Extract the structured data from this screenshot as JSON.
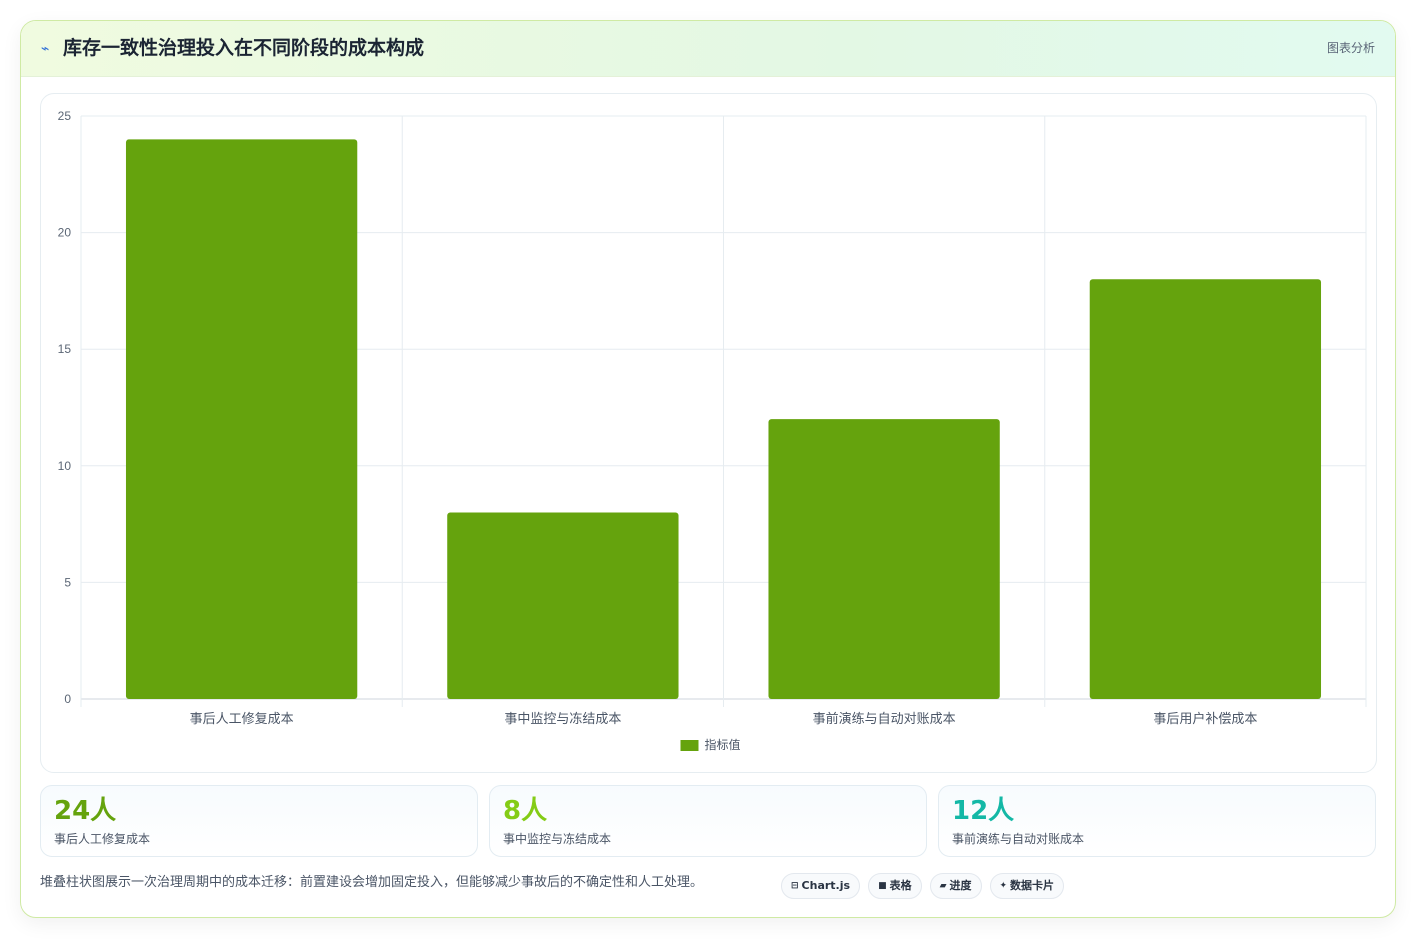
{
  "header": {
    "icon": "trend-line-icon",
    "icon_glyph": "⌁",
    "title": "库存一致性治理投入在不同阶段的成本构成",
    "tag": "图表分析"
  },
  "chart_data": {
    "type": "bar",
    "categories": [
      "事后人工修复成本",
      "事中监控与冻结成本",
      "事前演练与自动对账成本",
      "事后用户补偿成本"
    ],
    "series": [
      {
        "name": "指标值",
        "values": [
          24,
          8,
          12,
          18
        ],
        "color": "#65a30d"
      }
    ],
    "ylim": [
      0,
      25
    ],
    "yticks": [
      0,
      5,
      10,
      15,
      20,
      25
    ],
    "grid": true,
    "legend": "bottom",
    "title": "",
    "xlabel": "",
    "ylabel": ""
  },
  "stats": [
    {
      "value": "24人",
      "label": "事后人工修复成本",
      "color": "#65a30d"
    },
    {
      "value": "8人",
      "label": "事中监控与冻结成本",
      "color": "#84cc16"
    },
    {
      "value": "12人",
      "label": "事前演练与自动对账成本",
      "color": "#14b8a6"
    }
  ],
  "footer": {
    "text": "堆叠柱状图展示一次治理周期中的成本迁移：前置建设会增加固定投入，但能够减少事故后的不确定性和人工处理。",
    "pills": [
      {
        "icon": "chart-icon",
        "glyph": "⊟",
        "label": "Chart.js"
      },
      {
        "icon": "table-icon",
        "glyph": "■",
        "label": "表格"
      },
      {
        "icon": "progress-icon",
        "glyph": "▰",
        "label": "进度"
      },
      {
        "icon": "sparkle-icon",
        "glyph": "✦",
        "label": "数据卡片"
      }
    ]
  }
}
